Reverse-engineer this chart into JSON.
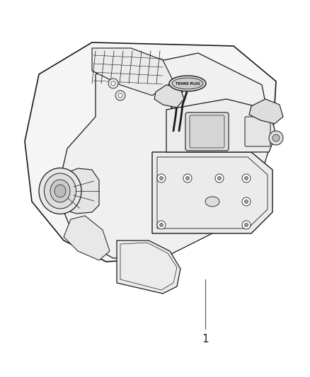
{
  "background_color": "#ffffff",
  "figure_width": 4.38,
  "figure_height": 5.33,
  "dpi": 100,
  "label_number": "1",
  "line_color": "#1a1a1a",
  "line_width": 0.7
}
